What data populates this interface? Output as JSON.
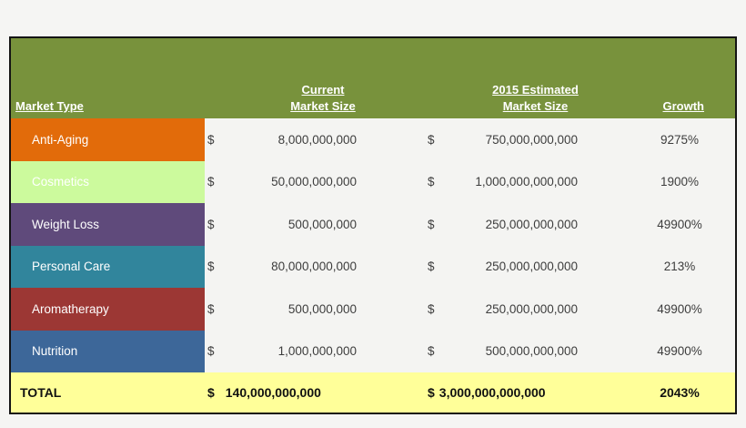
{
  "page": {
    "background": "#f5f5f3"
  },
  "table": {
    "border_color": "#141414",
    "header": {
      "background": "#78923C",
      "text_color": "#ffffff",
      "market_type_label": "Market Type",
      "current_label": "Current\nMarket Size",
      "estimated_label": "2015 Estimated\nMarket Size",
      "growth_label": "Growth"
    },
    "currency_symbol": "$",
    "rows": [
      {
        "label": "Anti-Aging",
        "color": "#E26B0A",
        "current": "8,000,000,000",
        "estimated": "750,000,000,000",
        "growth": "9275%"
      },
      {
        "label": "Cosmetics",
        "color": "#CCFA9D",
        "current": "50,000,000,000",
        "estimated": "1,000,000,000,000",
        "growth": "1900%"
      },
      {
        "label": "Weight Loss",
        "color": "#5F4A7B",
        "current": "500,000,000",
        "estimated": "250,000,000,000",
        "growth": "49900%"
      },
      {
        "label": "Personal Care",
        "color": "#31859C",
        "current": "80,000,000,000",
        "estimated": "250,000,000,000",
        "growth": "213%"
      },
      {
        "label": "Aromatherapy",
        "color": "#9C3734",
        "current": "500,000,000",
        "estimated": "250,000,000,000",
        "growth": "49900%"
      },
      {
        "label": "Nutrition",
        "color": "#3D6799",
        "current": "1,000,000,000",
        "estimated": "500,000,000,000",
        "growth": "49900%"
      }
    ],
    "total": {
      "label": "TOTAL",
      "background": "#FFFF99",
      "current": "140,000,000,000",
      "estimated": "3,000,000,000,000",
      "growth": "2043%"
    }
  },
  "chart_data": {
    "type": "table",
    "title": "Market sizes by market type",
    "columns": [
      "Market Type",
      "Current Market Size",
      "2015 Estimated Market Size",
      "Growth"
    ],
    "rows": [
      [
        "Anti-Aging",
        8000000000,
        750000000000,
        "9275%"
      ],
      [
        "Cosmetics",
        50000000000,
        1000000000000,
        "1900%"
      ],
      [
        "Weight Loss",
        500000000,
        250000000000,
        "49900%"
      ],
      [
        "Personal Care",
        80000000000,
        250000000000,
        "213%"
      ],
      [
        "Aromatherapy",
        500000000,
        250000000000,
        "49900%"
      ],
      [
        "Nutrition",
        1000000000,
        500000000000,
        "49900%"
      ]
    ],
    "total_row": [
      "TOTAL",
      140000000000,
      3000000000000,
      "2043%"
    ],
    "row_colors": [
      "#E26B0A",
      "#CCFA9D",
      "#5F4A7B",
      "#31859C",
      "#9C3734",
      "#3D6799"
    ]
  }
}
